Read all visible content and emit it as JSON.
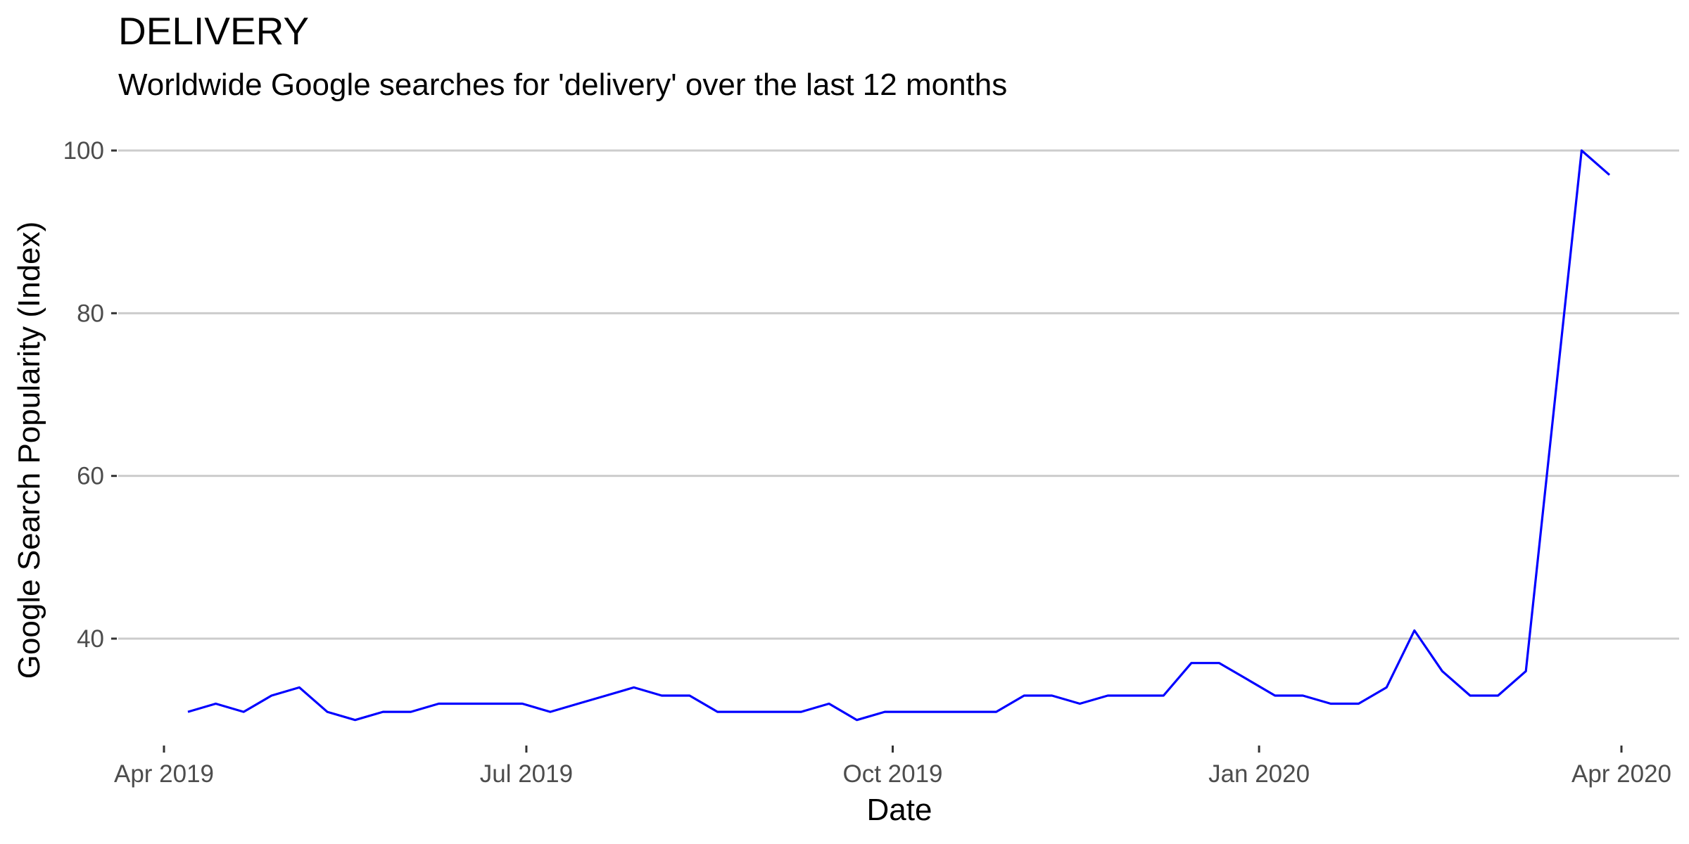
{
  "chart_data": {
    "type": "line",
    "title": "DELIVERY",
    "subtitle": "Worldwide Google searches for 'delivery' over the last 12 months",
    "xlabel": "Date",
    "ylabel": "Google Search Popularity (Index)",
    "x_ticks": [
      {
        "date": "2019-04-01",
        "label": "Apr 2019"
      },
      {
        "date": "2019-07-01",
        "label": "Jul 2019"
      },
      {
        "date": "2019-10-01",
        "label": "Oct 2019"
      },
      {
        "date": "2020-01-01",
        "label": "Jan 2020"
      },
      {
        "date": "2020-04-01",
        "label": "Apr 2020"
      }
    ],
    "y_ticks": [
      40,
      60,
      80,
      100
    ],
    "ylim": [
      28,
      100
    ],
    "xlim": [
      "2019-04-01",
      "2020-04-01"
    ],
    "grid": "horizontal-major",
    "colors": {
      "line": "#0000ff",
      "grid": "#cccccc",
      "tick_text": "#4d4d4d"
    },
    "series": [
      {
        "x": [
          "2019-04-07",
          "2019-04-14",
          "2019-04-21",
          "2019-04-28",
          "2019-05-05",
          "2019-05-12",
          "2019-05-19",
          "2019-05-26",
          "2019-06-02",
          "2019-06-09",
          "2019-06-16",
          "2019-06-23",
          "2019-06-30",
          "2019-07-07",
          "2019-07-14",
          "2019-07-21",
          "2019-07-28",
          "2019-08-04",
          "2019-08-11",
          "2019-08-18",
          "2019-08-25",
          "2019-09-01",
          "2019-09-08",
          "2019-09-15",
          "2019-09-22",
          "2019-09-29",
          "2019-10-06",
          "2019-10-13",
          "2019-10-20",
          "2019-10-27",
          "2019-11-03",
          "2019-11-10",
          "2019-11-17",
          "2019-11-24",
          "2019-12-01",
          "2019-12-08",
          "2019-12-15",
          "2019-12-22",
          "2019-12-29",
          "2020-01-05",
          "2020-01-12",
          "2020-01-19",
          "2020-01-26",
          "2020-02-02",
          "2020-02-09",
          "2020-02-16",
          "2020-02-23",
          "2020-03-01",
          "2020-03-08",
          "2020-03-15",
          "2020-03-22",
          "2020-03-29"
        ],
        "values": [
          31,
          32,
          31,
          33,
          34,
          31,
          30,
          31,
          31,
          32,
          32,
          32,
          32,
          31,
          32,
          33,
          34,
          33,
          33,
          31,
          31,
          31,
          31,
          32,
          30,
          31,
          31,
          31,
          31,
          31,
          33,
          33,
          32,
          33,
          33,
          33,
          37,
          37,
          35,
          33,
          33,
          32,
          32,
          34,
          41,
          36,
          33,
          33,
          36,
          68,
          100,
          97
        ]
      }
    ]
  }
}
